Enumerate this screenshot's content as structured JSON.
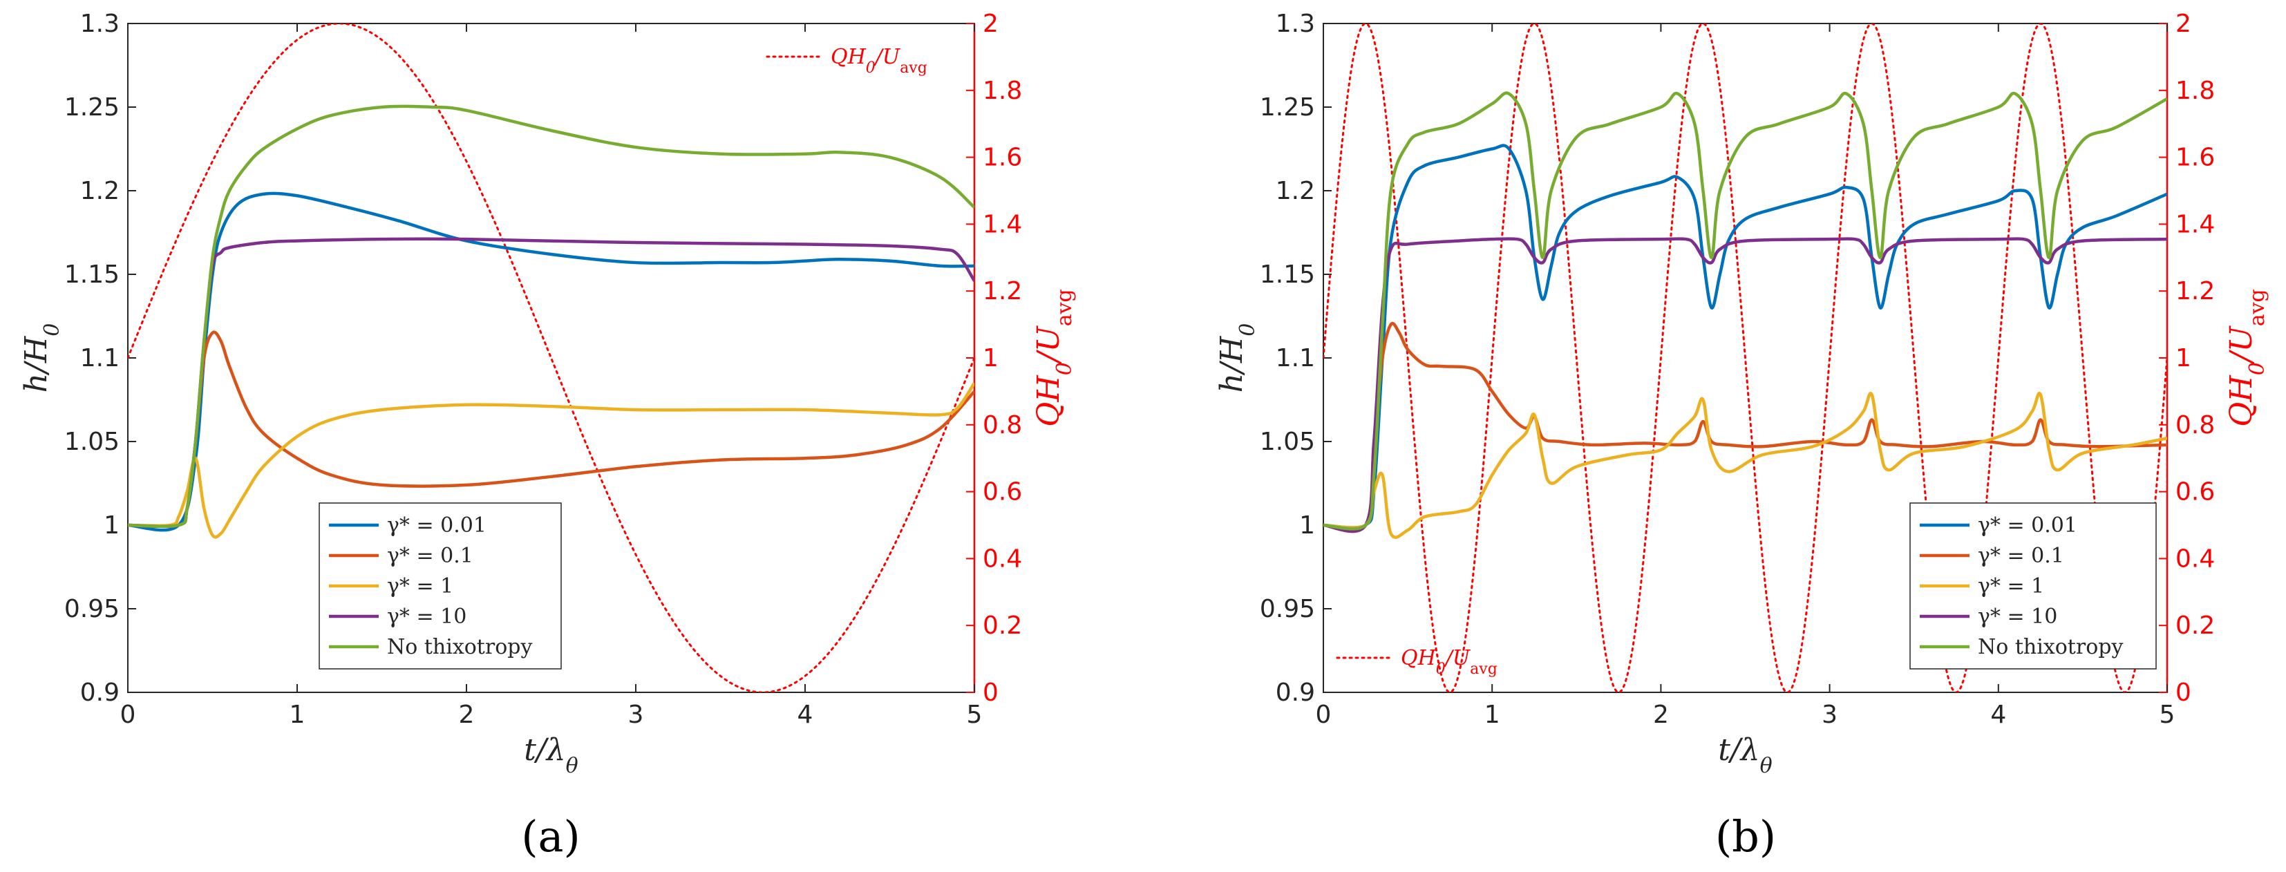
{
  "chart_data": [
    {
      "type": "line",
      "panel_label": "(a)",
      "xlabel": "t/λ_θ",
      "ylabel": "h/H_0",
      "y2label": "QH_0/U_avg",
      "xlim": [
        0,
        5
      ],
      "ylim": [
        0.9,
        1.3
      ],
      "y2lim": [
        0,
        2
      ],
      "xticks": [
        "0",
        "1",
        "2",
        "3",
        "4",
        "5"
      ],
      "yticks": [
        "0.9",
        "0.95",
        "1",
        "1.05",
        "1.1",
        "1.15",
        "1.2",
        "1.25",
        "1.3"
      ],
      "y2ticks": [
        "0",
        "0.2",
        "0.4",
        "0.6",
        "0.8",
        "1",
        "1.2",
        "1.4",
        "1.6",
        "1.8",
        "2"
      ],
      "legend_position": "bottom-center",
      "flow_legend_position": "top-right",
      "flow_label": "QH_0/U_avg",
      "flow_color": "#ff0000",
      "flow": {
        "base": 1,
        "amplitude": 1,
        "cycles": 0.2
      },
      "series": [
        {
          "name": "γ* = 0.01",
          "color": "#0072bd",
          "x": [
            0,
            0.3,
            0.4,
            0.45,
            0.5,
            0.55,
            0.65,
            0.8,
            1.0,
            1.3,
            1.6,
            2.0,
            2.5,
            3.0,
            3.5,
            3.8,
            4.0,
            4.2,
            4.5,
            4.8,
            5.0
          ],
          "y": [
            1.0,
            1.0,
            1.04,
            1.1,
            1.15,
            1.175,
            1.192,
            1.198,
            1.197,
            1.19,
            1.182,
            1.17,
            1.162,
            1.157,
            1.157,
            1.157,
            1.158,
            1.159,
            1.158,
            1.155,
            1.155
          ]
        },
        {
          "name": "γ* = 0.1",
          "color": "#d95319",
          "x": [
            0,
            0.3,
            0.35,
            0.4,
            0.45,
            0.5,
            0.55,
            0.6,
            0.7,
            0.8,
            1.0,
            1.2,
            1.5,
            2.0,
            2.5,
            3.0,
            3.5,
            4.0,
            4.3,
            4.6,
            4.8,
            5.0
          ],
          "y": [
            1.0,
            1.0,
            1.01,
            1.05,
            1.1,
            1.115,
            1.11,
            1.095,
            1.07,
            1.055,
            1.04,
            1.03,
            1.024,
            1.024,
            1.029,
            1.035,
            1.039,
            1.04,
            1.042,
            1.048,
            1.058,
            1.08
          ]
        },
        {
          "name": "γ* = 1",
          "color": "#edb120",
          "x": [
            0,
            0.25,
            0.3,
            0.35,
            0.4,
            0.45,
            0.5,
            0.55,
            0.6,
            0.7,
            0.8,
            1.0,
            1.2,
            1.5,
            2.0,
            2.5,
            3.0,
            3.5,
            4.0,
            4.5,
            4.8,
            4.9,
            5.0
          ],
          "y": [
            1.0,
            1.0,
            1.005,
            1.02,
            1.04,
            1.01,
            0.994,
            0.995,
            1.003,
            1.02,
            1.035,
            1.053,
            1.063,
            1.069,
            1.072,
            1.071,
            1.069,
            1.069,
            1.069,
            1.067,
            1.066,
            1.07,
            1.085
          ]
        },
        {
          "name": "γ* = 10",
          "color": "#7e2f8e",
          "x": [
            0,
            0.3,
            0.35,
            0.4,
            0.45,
            0.5,
            0.55,
            0.6,
            0.8,
            1.0,
            1.5,
            2.0,
            3.0,
            4.0,
            4.5,
            4.8,
            4.9,
            5.0
          ],
          "y": [
            1.0,
            1.0,
            1.01,
            1.05,
            1.11,
            1.155,
            1.163,
            1.166,
            1.169,
            1.17,
            1.171,
            1.171,
            1.169,
            1.168,
            1.167,
            1.165,
            1.162,
            1.146
          ]
        },
        {
          "name": "No thixotropy",
          "color": "#77ac30",
          "x": [
            0,
            0.3,
            0.35,
            0.4,
            0.45,
            0.5,
            0.55,
            0.6,
            0.7,
            0.8,
            1.0,
            1.2,
            1.5,
            1.8,
            2.0,
            2.5,
            3.0,
            3.5,
            4.0,
            4.2,
            4.5,
            4.8,
            5.0
          ],
          "y": [
            1.0,
            1.0,
            1.01,
            1.05,
            1.11,
            1.16,
            1.185,
            1.2,
            1.215,
            1.225,
            1.237,
            1.245,
            1.25,
            1.25,
            1.248,
            1.236,
            1.226,
            1.222,
            1.222,
            1.223,
            1.22,
            1.208,
            1.19
          ]
        }
      ]
    },
    {
      "type": "line",
      "panel_label": "(b)",
      "xlabel": "t/λ_θ",
      "ylabel": "h/H_0",
      "y2label": "QH_0/U_avg",
      "xlim": [
        0,
        5
      ],
      "ylim": [
        0.9,
        1.3
      ],
      "y2lim": [
        0,
        2
      ],
      "xticks": [
        "0",
        "1",
        "2",
        "3",
        "4",
        "5"
      ],
      "yticks": [
        "0.9",
        "0.95",
        "1",
        "1.05",
        "1.1",
        "1.15",
        "1.2",
        "1.25",
        "1.3"
      ],
      "y2ticks": [
        "0",
        "0.2",
        "0.4",
        "0.6",
        "0.8",
        "1",
        "1.2",
        "1.4",
        "1.6",
        "1.8",
        "2"
      ],
      "legend_position": "bottom-right",
      "flow_legend_position": "bottom-left",
      "flow_label": "QH_0/U_avg",
      "flow_color": "#ff0000",
      "flow": {
        "base": 1,
        "amplitude": 1,
        "cycles": 1
      },
      "series": [
        {
          "name": "γ* = 0.01",
          "color": "#0072bd",
          "x": [
            0,
            0.25,
            0.3,
            0.35,
            0.4,
            0.5,
            0.6,
            0.8,
            1.0,
            1.1,
            1.2,
            1.25,
            1.3,
            1.35,
            1.4,
            1.5,
            1.7,
            2.0,
            2.1,
            2.2,
            2.25,
            2.3,
            2.35,
            2.4,
            2.5,
            2.7,
            3.0,
            3.1,
            3.2,
            3.25,
            3.3,
            3.35,
            3.4,
            3.5,
            3.7,
            4.0,
            4.1,
            4.2,
            4.25,
            4.3,
            4.35,
            4.4,
            4.5,
            4.7,
            5.0
          ],
          "y": [
            1.0,
            1.0,
            1.02,
            1.1,
            1.17,
            1.205,
            1.215,
            1.22,
            1.225,
            1.225,
            1.2,
            1.16,
            1.135,
            1.155,
            1.175,
            1.188,
            1.197,
            1.205,
            1.208,
            1.195,
            1.16,
            1.13,
            1.15,
            1.17,
            1.183,
            1.19,
            1.198,
            1.202,
            1.195,
            1.16,
            1.13,
            1.15,
            1.168,
            1.18,
            1.186,
            1.194,
            1.2,
            1.195,
            1.16,
            1.13,
            1.15,
            1.168,
            1.178,
            1.185,
            1.198
          ]
        },
        {
          "name": "γ* = 0.1",
          "color": "#d95319",
          "x": [
            0,
            0.25,
            0.3,
            0.35,
            0.4,
            0.45,
            0.5,
            0.6,
            0.7,
            0.9,
            1.0,
            1.1,
            1.2,
            1.25,
            1.3,
            1.4,
            1.6,
            1.9,
            2.1,
            2.2,
            2.25,
            2.3,
            2.4,
            2.6,
            2.9,
            3.1,
            3.2,
            3.25,
            3.3,
            3.4,
            3.6,
            3.9,
            4.1,
            4.2,
            4.25,
            4.3,
            4.4,
            4.6,
            5.0
          ],
          "y": [
            1.0,
            1.0,
            1.05,
            1.1,
            1.12,
            1.115,
            1.105,
            1.096,
            1.095,
            1.093,
            1.08,
            1.066,
            1.058,
            1.065,
            1.052,
            1.05,
            1.048,
            1.049,
            1.048,
            1.05,
            1.062,
            1.05,
            1.048,
            1.047,
            1.05,
            1.048,
            1.05,
            1.063,
            1.05,
            1.048,
            1.047,
            1.05,
            1.048,
            1.05,
            1.063,
            1.05,
            1.048,
            1.047,
            1.048
          ]
        },
        {
          "name": "γ* = 1",
          "color": "#edb120",
          "x": [
            0,
            0.25,
            0.3,
            0.35,
            0.4,
            0.5,
            0.6,
            0.8,
            0.9,
            1.0,
            1.1,
            1.2,
            1.25,
            1.3,
            1.35,
            1.5,
            1.8,
            2.0,
            2.1,
            2.2,
            2.25,
            2.3,
            2.4,
            2.6,
            2.9,
            3.1,
            3.2,
            3.25,
            3.3,
            3.35,
            3.5,
            3.8,
            4.1,
            4.2,
            4.25,
            4.3,
            4.35,
            4.5,
            4.8,
            5.0
          ],
          "y": [
            1.0,
            1.0,
            1.02,
            1.03,
            0.995,
            0.997,
            1.005,
            1.008,
            1.012,
            1.03,
            1.045,
            1.055,
            1.066,
            1.04,
            1.025,
            1.035,
            1.042,
            1.045,
            1.055,
            1.065,
            1.075,
            1.045,
            1.032,
            1.042,
            1.047,
            1.057,
            1.068,
            1.078,
            1.045,
            1.033,
            1.043,
            1.047,
            1.057,
            1.068,
            1.078,
            1.045,
            1.033,
            1.043,
            1.048,
            1.052
          ]
        },
        {
          "name": "γ* = 10",
          "color": "#7e2f8e",
          "x": [
            0,
            0.25,
            0.3,
            0.35,
            0.4,
            0.5,
            0.8,
            1.0,
            1.15,
            1.2,
            1.25,
            1.3,
            1.35,
            1.5,
            2.0,
            2.15,
            2.2,
            2.25,
            2.3,
            2.35,
            2.5,
            3.0,
            3.15,
            3.2,
            3.25,
            3.3,
            3.35,
            3.5,
            4.0,
            4.15,
            4.2,
            4.25,
            4.3,
            4.35,
            4.5,
            5.0
          ],
          "y": [
            1.0,
            1.0,
            1.05,
            1.13,
            1.165,
            1.168,
            1.17,
            1.171,
            1.171,
            1.168,
            1.16,
            1.157,
            1.165,
            1.17,
            1.171,
            1.171,
            1.168,
            1.16,
            1.157,
            1.165,
            1.17,
            1.171,
            1.171,
            1.168,
            1.16,
            1.157,
            1.165,
            1.17,
            1.171,
            1.171,
            1.168,
            1.16,
            1.157,
            1.165,
            1.17,
            1.171
          ]
        },
        {
          "name": "No thixotropy",
          "color": "#77ac30",
          "x": [
            0,
            0.25,
            0.3,
            0.35,
            0.4,
            0.5,
            0.6,
            0.8,
            1.0,
            1.1,
            1.2,
            1.25,
            1.3,
            1.35,
            1.5,
            1.7,
            2.0,
            2.1,
            2.2,
            2.25,
            2.3,
            2.35,
            2.5,
            2.7,
            3.0,
            3.1,
            3.2,
            3.25,
            3.3,
            3.35,
            3.5,
            3.7,
            4.0,
            4.1,
            4.2,
            4.25,
            4.3,
            4.35,
            4.5,
            4.7,
            5.0
          ],
          "y": [
            1.0,
            1.0,
            1.03,
            1.12,
            1.2,
            1.228,
            1.235,
            1.24,
            1.252,
            1.258,
            1.24,
            1.2,
            1.16,
            1.2,
            1.232,
            1.24,
            1.25,
            1.258,
            1.24,
            1.2,
            1.16,
            1.2,
            1.232,
            1.24,
            1.25,
            1.258,
            1.24,
            1.2,
            1.16,
            1.2,
            1.232,
            1.24,
            1.25,
            1.258,
            1.24,
            1.2,
            1.16,
            1.2,
            1.23,
            1.238,
            1.255
          ]
        }
      ]
    }
  ]
}
